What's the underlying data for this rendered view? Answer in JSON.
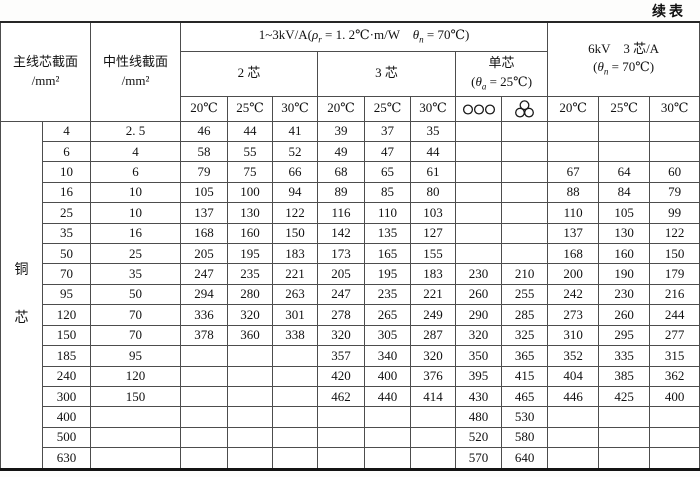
{
  "page": {
    "continued_label": "续表"
  },
  "table": {
    "material_label": "铜芯",
    "header": {
      "col_main_line1": "主线芯截面",
      "col_main_line2": "/mm²",
      "col_neutral_line1": "中性线截面",
      "col_neutral_line2": "/mm²",
      "kv13": {
        "p1": "1~3kV/A(",
        "rho": "ρ",
        "sub1": "r",
        "p2": " = 1. 2℃·m/W　",
        "theta": "θ",
        "sub2": "n",
        "p3": " = 70℃)"
      },
      "core2": "2 芯",
      "core3": "3 芯",
      "single_line1": "单芯",
      "single": {
        "p1": "(",
        "theta": "θ",
        "sub": "a",
        "p2": " = 25℃)"
      },
      "kv6_line1": "6kV　3 芯/A",
      "kv6": {
        "p1": "(",
        "theta": "θ",
        "sub": "n",
        "p2": " = 70℃)"
      },
      "temps": [
        "20℃",
        "25℃",
        "30℃"
      ],
      "single_symbols": [
        "three-circles-flat-icon",
        "three-circles-trefoil-icon"
      ]
    },
    "rows": [
      {
        "main": "4",
        "neutral": "2. 5",
        "c2": [
          "46",
          "44",
          "41"
        ],
        "c3": [
          "39",
          "37",
          "35"
        ],
        "single": [
          "",
          ""
        ],
        "kv6": [
          "",
          "",
          ""
        ]
      },
      {
        "main": "6",
        "neutral": "4",
        "c2": [
          "58",
          "55",
          "52"
        ],
        "c3": [
          "49",
          "47",
          "44"
        ],
        "single": [
          "",
          ""
        ],
        "kv6": [
          "",
          "",
          ""
        ]
      },
      {
        "main": "10",
        "neutral": "6",
        "c2": [
          "79",
          "75",
          "66"
        ],
        "c3": [
          "68",
          "65",
          "61"
        ],
        "single": [
          "",
          ""
        ],
        "kv6": [
          "67",
          "64",
          "60"
        ]
      },
      {
        "main": "16",
        "neutral": "10",
        "c2": [
          "105",
          "100",
          "94"
        ],
        "c3": [
          "89",
          "85",
          "80"
        ],
        "single": [
          "",
          ""
        ],
        "kv6": [
          "88",
          "84",
          "79"
        ]
      },
      {
        "main": "25",
        "neutral": "10",
        "c2": [
          "137",
          "130",
          "122"
        ],
        "c3": [
          "116",
          "110",
          "103"
        ],
        "single": [
          "",
          ""
        ],
        "kv6": [
          "110",
          "105",
          "99"
        ]
      },
      {
        "main": "35",
        "neutral": "16",
        "c2": [
          "168",
          "160",
          "150"
        ],
        "c3": [
          "142",
          "135",
          "127"
        ],
        "single": [
          "",
          ""
        ],
        "kv6": [
          "137",
          "130",
          "122"
        ]
      },
      {
        "main": "50",
        "neutral": "25",
        "c2": [
          "205",
          "195",
          "183"
        ],
        "c3": [
          "173",
          "165",
          "155"
        ],
        "single": [
          "",
          ""
        ],
        "kv6": [
          "168",
          "160",
          "150"
        ]
      },
      {
        "main": "70",
        "neutral": "35",
        "c2": [
          "247",
          "235",
          "221"
        ],
        "c3": [
          "205",
          "195",
          "183"
        ],
        "single": [
          "230",
          "210"
        ],
        "kv6": [
          "200",
          "190",
          "179"
        ]
      },
      {
        "main": "95",
        "neutral": "50",
        "c2": [
          "294",
          "280",
          "263"
        ],
        "c3": [
          "247",
          "235",
          "221"
        ],
        "single": [
          "260",
          "255"
        ],
        "kv6": [
          "242",
          "230",
          "216"
        ]
      },
      {
        "main": "120",
        "neutral": "70",
        "c2": [
          "336",
          "320",
          "301"
        ],
        "c3": [
          "278",
          "265",
          "249"
        ],
        "single": [
          "290",
          "285"
        ],
        "kv6": [
          "273",
          "260",
          "244"
        ]
      },
      {
        "main": "150",
        "neutral": "70",
        "c2": [
          "378",
          "360",
          "338"
        ],
        "c3": [
          "320",
          "305",
          "287"
        ],
        "single": [
          "320",
          "325"
        ],
        "kv6": [
          "310",
          "295",
          "277"
        ]
      },
      {
        "main": "185",
        "neutral": "95",
        "c2": [
          "",
          "",
          ""
        ],
        "c3": [
          "357",
          "340",
          "320"
        ],
        "single": [
          "350",
          "365"
        ],
        "kv6": [
          "352",
          "335",
          "315"
        ]
      },
      {
        "main": "240",
        "neutral": "120",
        "c2": [
          "",
          "",
          ""
        ],
        "c3": [
          "420",
          "400",
          "376"
        ],
        "single": [
          "395",
          "415"
        ],
        "kv6": [
          "404",
          "385",
          "362"
        ]
      },
      {
        "main": "300",
        "neutral": "150",
        "c2": [
          "",
          "",
          ""
        ],
        "c3": [
          "462",
          "440",
          "414"
        ],
        "single": [
          "430",
          "465"
        ],
        "kv6": [
          "446",
          "425",
          "400"
        ]
      },
      {
        "main": "400",
        "neutral": "",
        "c2": [
          "",
          "",
          ""
        ],
        "c3": [
          "",
          "",
          ""
        ],
        "single": [
          "480",
          "530"
        ],
        "kv6": [
          "",
          "",
          ""
        ]
      },
      {
        "main": "500",
        "neutral": "",
        "c2": [
          "",
          "",
          ""
        ],
        "c3": [
          "",
          "",
          ""
        ],
        "single": [
          "520",
          "580"
        ],
        "kv6": [
          "",
          "",
          ""
        ]
      },
      {
        "main": "630",
        "neutral": "",
        "c2": [
          "",
          "",
          ""
        ],
        "c3": [
          "",
          "",
          ""
        ],
        "single": [
          "570",
          "640"
        ],
        "kv6": [
          "",
          "",
          ""
        ]
      }
    ]
  }
}
